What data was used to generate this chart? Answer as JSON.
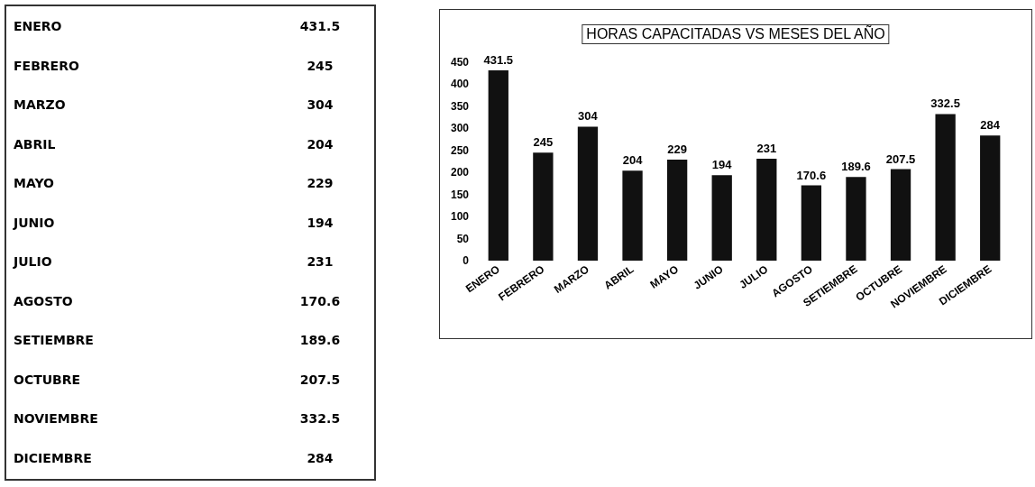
{
  "chart_data": [
    {
      "type": "other",
      "categories": [
        "ENERO",
        "FEBRERO",
        "MARZO",
        "ABRIL",
        "MAYO",
        "JUNIO",
        "JULIO",
        "AGOSTO",
        "SETIEMBRE",
        "OCTUBRE",
        "NOVIEMBRE",
        "DICIEMBRE"
      ],
      "values": [
        431.5,
        245,
        304,
        204,
        229,
        194,
        231,
        170.6,
        189.6,
        207.5,
        332.5,
        284
      ],
      "data_labels": true
    },
    {
      "type": "bar",
      "title": "HORAS CAPACITADAS VS MESES DEL AÑO",
      "categories": [
        "ENERO",
        "FEBRERO",
        "MARZO",
        "ABRIL",
        "MAYO",
        "JUNIO",
        "JULIO",
        "AGOSTO",
        "SETIEMBRE",
        "OCTUBRE",
        "NOVIEMBRE",
        "DICIEMBRE"
      ],
      "values": [
        431.5,
        245,
        304,
        204,
        229,
        194,
        231,
        170.6,
        189.6,
        207.5,
        332.5,
        284
      ],
      "color": "#111111",
      "ylim": [
        0,
        450
      ],
      "yticks": [
        0,
        50,
        100,
        150,
        200,
        250,
        300,
        350,
        400,
        450
      ],
      "data_labels": true
    }
  ]
}
